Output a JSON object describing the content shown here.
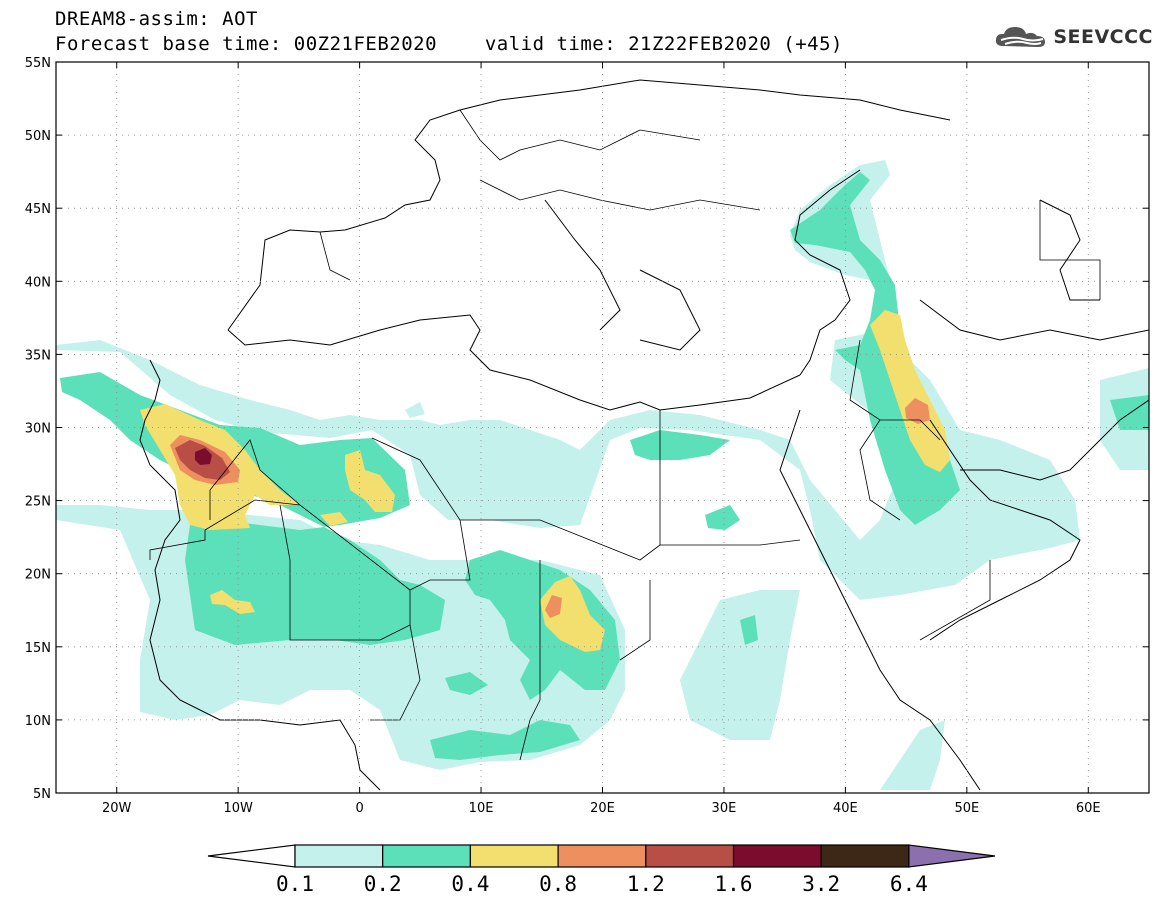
{
  "header": {
    "title": "DREAM8-assim: AOT",
    "base_time_label": "Forecast base time: 00Z21FEB2020",
    "valid_time_label": "valid time: 21Z22FEB2020 (+45)"
  },
  "logo": {
    "text": "SEEVCCC",
    "icon": "cloud-icon"
  },
  "map": {
    "lon_range": [
      -25,
      65
    ],
    "lat_range": [
      5,
      55
    ],
    "lon_ticks": [
      {
        "value": -20,
        "label": "20W"
      },
      {
        "value": -10,
        "label": "10W"
      },
      {
        "value": 0,
        "label": "0"
      },
      {
        "value": 10,
        "label": "10E"
      },
      {
        "value": 20,
        "label": "20E"
      },
      {
        "value": 30,
        "label": "30E"
      },
      {
        "value": 40,
        "label": "40E"
      },
      {
        "value": 50,
        "label": "50E"
      },
      {
        "value": 60,
        "label": "60E"
      }
    ],
    "lat_ticks": [
      {
        "value": 55,
        "label": "55N"
      },
      {
        "value": 50,
        "label": "50N"
      },
      {
        "value": 45,
        "label": "45N"
      },
      {
        "value": 40,
        "label": "40N"
      },
      {
        "value": 35,
        "label": "35N"
      },
      {
        "value": 30,
        "label": "30N"
      },
      {
        "value": 25,
        "label": "25N"
      },
      {
        "value": 20,
        "label": "20N"
      },
      {
        "value": 15,
        "label": "15N"
      },
      {
        "value": 10,
        "label": "10N"
      },
      {
        "value": 5,
        "label": "5N"
      }
    ],
    "grid": true
  },
  "colorbar": {
    "levels": [
      "0.1",
      "0.2",
      "0.4",
      "0.8",
      "1.2",
      "1.6",
      "3.2",
      "6.4"
    ],
    "colors": [
      "#c4f1ec",
      "#5ce0b9",
      "#f3df6d",
      "#ee8f60",
      "#b84e46",
      "#7b0c2e",
      "#3d2717",
      "#8c6fad"
    ],
    "below_color": "#ffffff"
  }
}
